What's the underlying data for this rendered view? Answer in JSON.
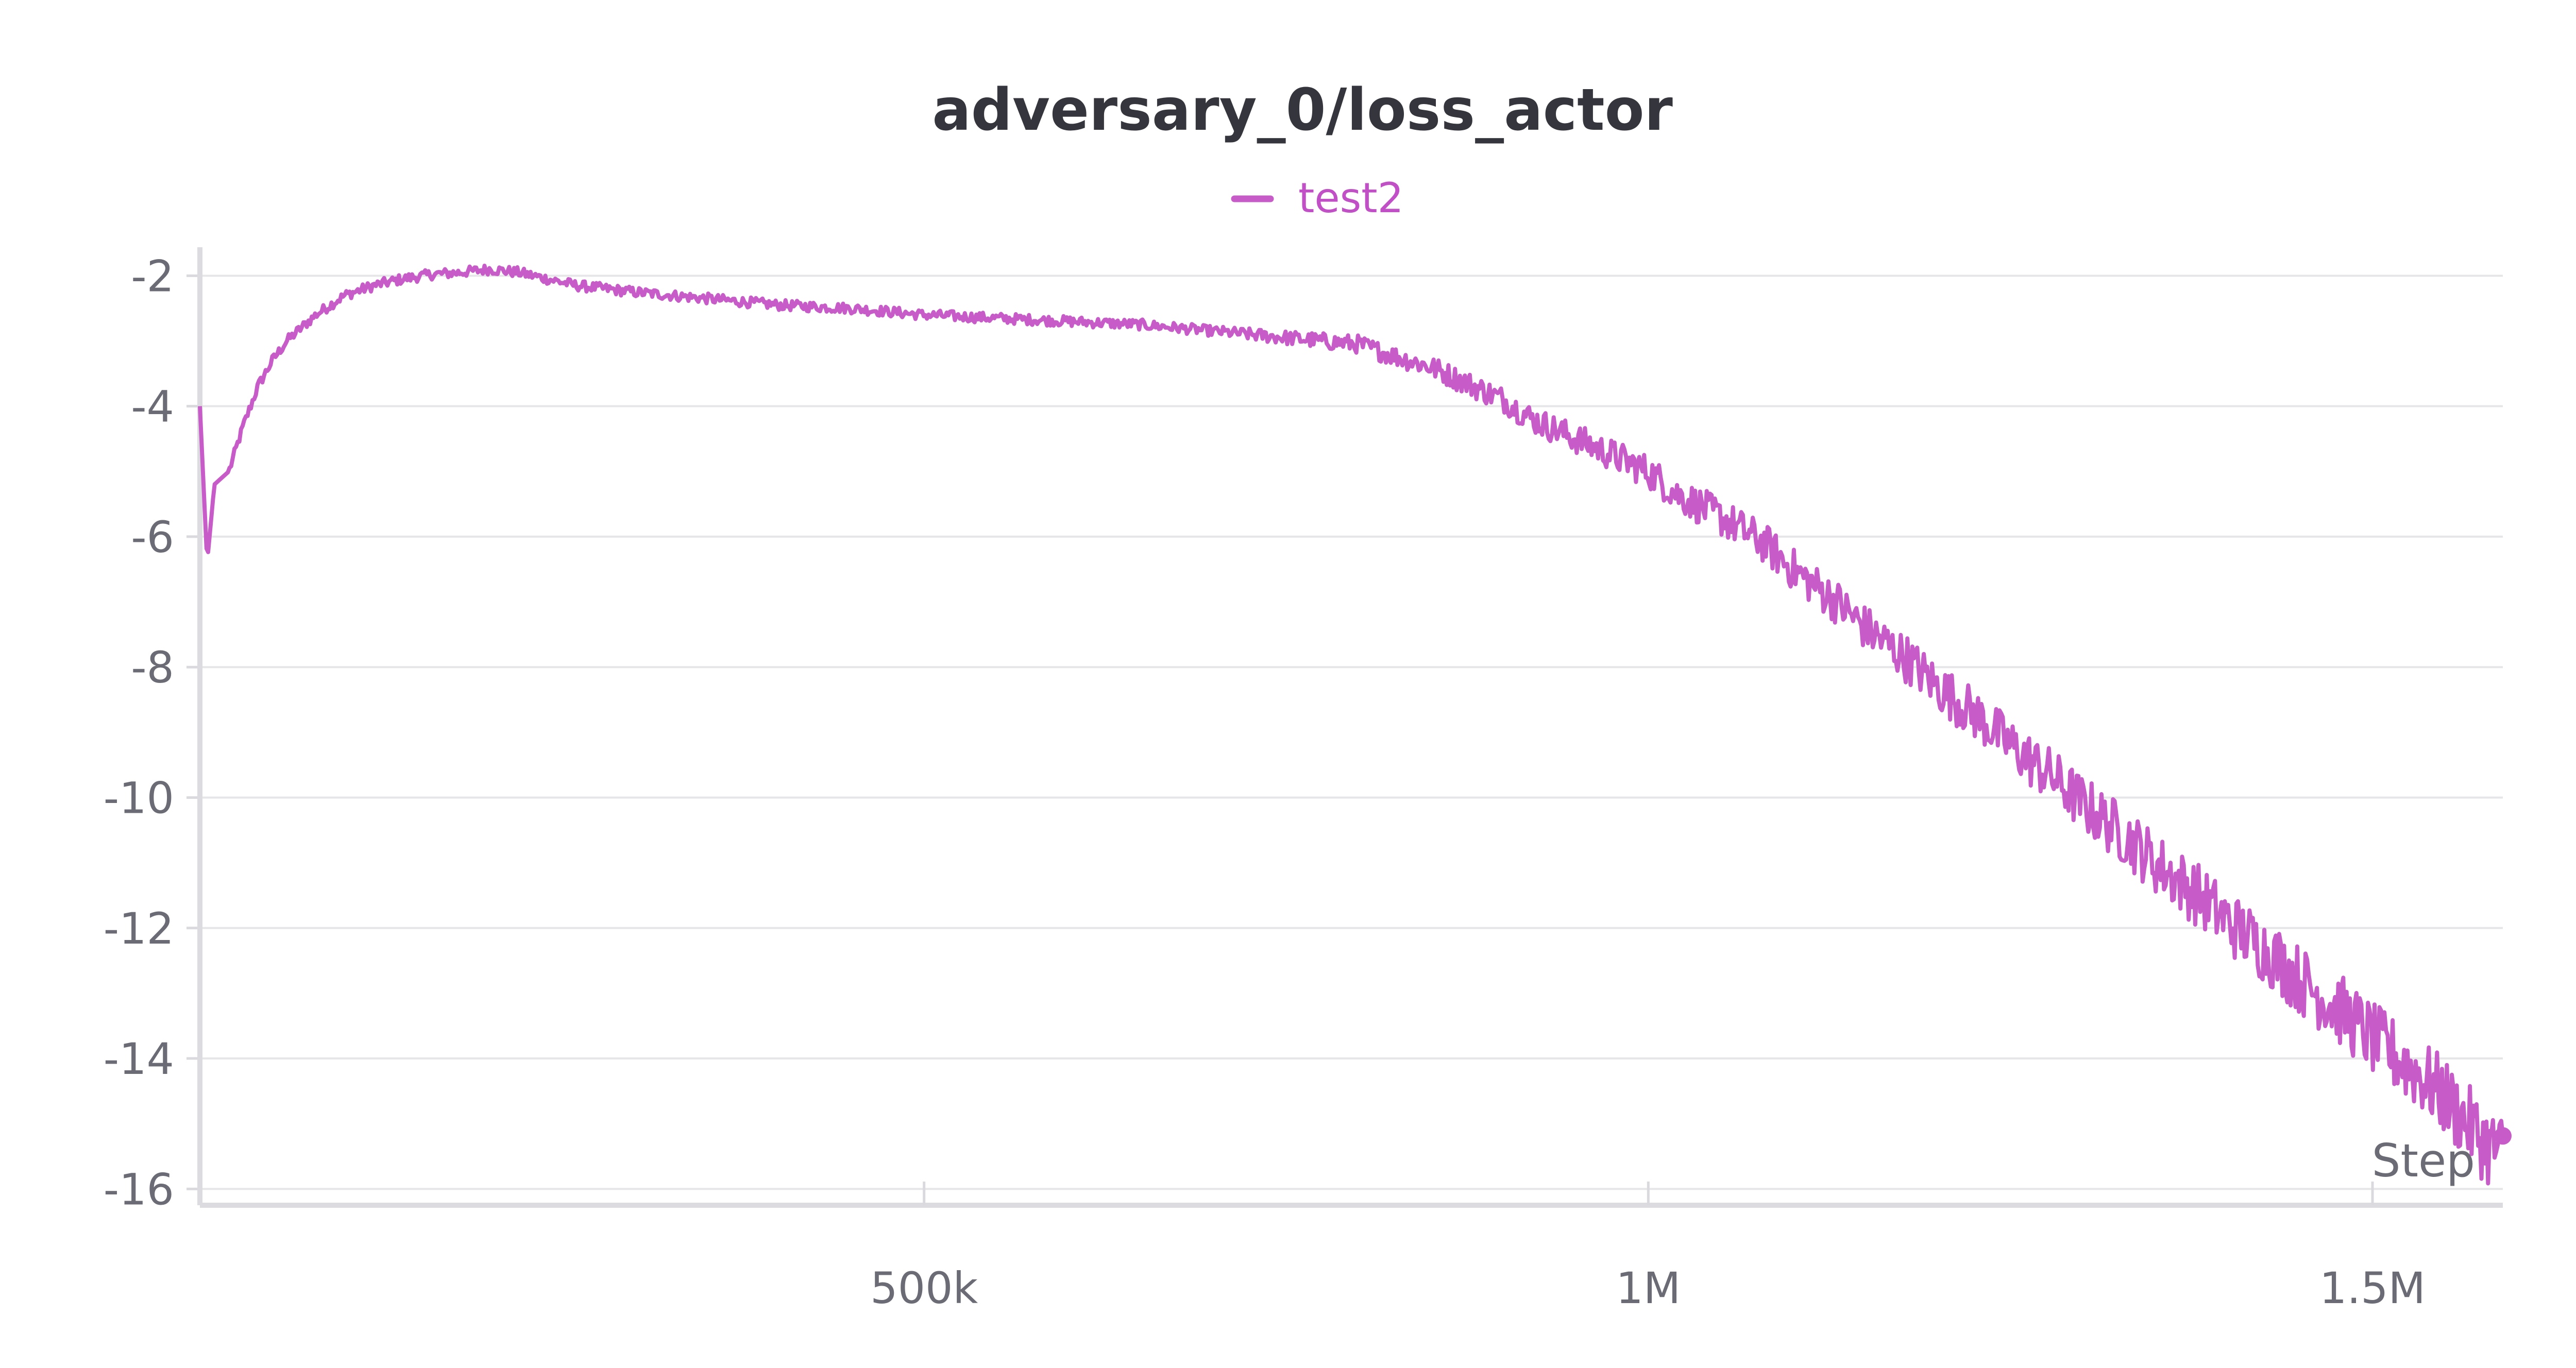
{
  "chart_data": {
    "type": "line",
    "title": "adversary_0/loss_actor",
    "xlabel": "Step",
    "ylabel": "",
    "xlim": [
      0,
      1590000
    ],
    "ylim": [
      -16.25,
      -1.8
    ],
    "grid": true,
    "legend_position": "top-center",
    "x_ticks": [
      {
        "value": 500000,
        "label": "500k"
      },
      {
        "value": 1000000,
        "label": "1M"
      },
      {
        "value": 1500000,
        "label": "1.5M"
      }
    ],
    "y_ticks": [
      {
        "value": -2,
        "label": "-2"
      },
      {
        "value": -4,
        "label": "-4"
      },
      {
        "value": -6,
        "label": "-6"
      },
      {
        "value": -8,
        "label": "-8"
      },
      {
        "value": -10,
        "label": "-10"
      },
      {
        "value": -12,
        "label": "-12"
      },
      {
        "value": -14,
        "label": "-14"
      },
      {
        "value": -16,
        "label": "-16"
      }
    ],
    "series": [
      {
        "name": "test2",
        "color": "#c75cc9",
        "x": [
          0,
          5000,
          10000,
          20000,
          30000,
          40000,
          50000,
          60000,
          70000,
          80000,
          100000,
          120000,
          140000,
          160000,
          180000,
          200000,
          220000,
          240000,
          260000,
          280000,
          300000,
          350000,
          400000,
          450000,
          500000,
          550000,
          600000,
          650000,
          700000,
          750000,
          800000,
          820000,
          850000,
          880000,
          900000,
          920000,
          950000,
          980000,
          1000000,
          1020000,
          1050000,
          1080000,
          1100000,
          1130000,
          1150000,
          1180000,
          1200000,
          1230000,
          1250000,
          1280000,
          1300000,
          1330000,
          1350000,
          1380000,
          1400000,
          1430000,
          1450000,
          1480000,
          1500000,
          1530000,
          1550000,
          1570000,
          1580000,
          1590000
        ],
        "y": [
          -4.0,
          -6.4,
          -5.2,
          -5.0,
          -4.3,
          -3.7,
          -3.3,
          -3.0,
          -2.8,
          -2.6,
          -2.3,
          -2.15,
          -2.05,
          -1.98,
          -1.95,
          -1.9,
          -1.95,
          -2.05,
          -2.15,
          -2.2,
          -2.25,
          -2.35,
          -2.45,
          -2.5,
          -2.6,
          -2.65,
          -2.7,
          -2.75,
          -2.85,
          -2.95,
          -3.05,
          -3.2,
          -3.4,
          -3.7,
          -3.9,
          -4.2,
          -4.5,
          -4.8,
          -5.0,
          -5.35,
          -5.7,
          -6.1,
          -6.5,
          -7.0,
          -7.4,
          -7.9,
          -8.3,
          -8.8,
          -9.2,
          -9.7,
          -10.1,
          -10.6,
          -11.0,
          -11.5,
          -11.9,
          -12.4,
          -12.8,
          -13.3,
          -13.7,
          -14.2,
          -14.6,
          -15.1,
          -15.35,
          -15.45
        ]
      }
    ]
  }
}
